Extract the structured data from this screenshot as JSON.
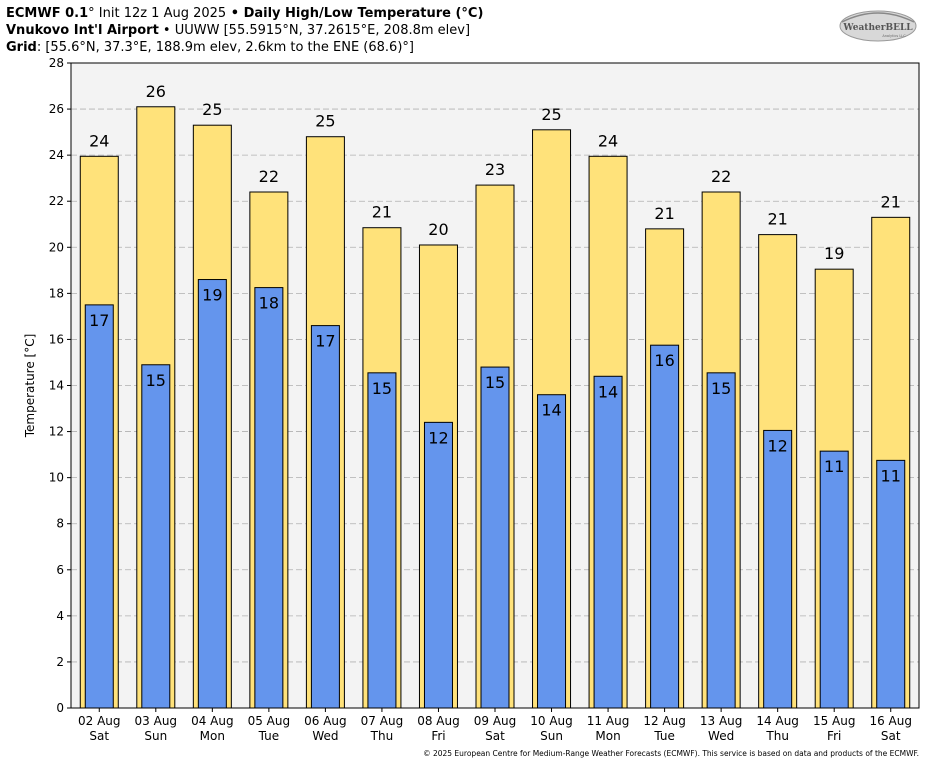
{
  "header": {
    "model": "ECMWF 0.1",
    "model_suffix": "° Init 12z 1 Aug 2025",
    "sep1": " • ",
    "product": "Daily High/Low Temperature (°C)",
    "station_name": "Vnukovo Int'l Airport",
    "sep2": " • ",
    "station_info": "UUWW [55.5915°N, 37.2615°E, 208.8m elev]",
    "grid_label": "Grid",
    "grid_info": ": [55.6°N, 37.3°E, 188.9m elev, 2.6km to the ENE (68.6)°]"
  },
  "logo": {
    "text": "WeatherBELL",
    "sub": "Analytics LLC"
  },
  "footer": {
    "copyright": "© 2025 European Centre for Medium-Range Weather Forecasts (ECMWF). This service is based on data and products of the ECMWF."
  },
  "colors": {
    "high": "#ffe27a",
    "low": "#6495ed",
    "plot_bg": "#f3f3f3",
    "grid": "#b0b0b0"
  },
  "chart_data": {
    "type": "bar",
    "ylabel": "Temperature [°C]",
    "ylim": [
      0,
      28
    ],
    "yticks": [
      0,
      2,
      4,
      6,
      8,
      10,
      12,
      14,
      16,
      18,
      20,
      22,
      24,
      26,
      28
    ],
    "grid": true,
    "categories": [
      "02 Aug",
      "03 Aug",
      "04 Aug",
      "05 Aug",
      "06 Aug",
      "07 Aug",
      "08 Aug",
      "09 Aug",
      "10 Aug",
      "11 Aug",
      "12 Aug",
      "13 Aug",
      "14 Aug",
      "15 Aug",
      "16 Aug"
    ],
    "weekdays": [
      "Sat",
      "Sun",
      "Mon",
      "Tue",
      "Wed",
      "Thu",
      "Fri",
      "Sat",
      "Sun",
      "Mon",
      "Tue",
      "Wed",
      "Thu",
      "Fri",
      "Sat"
    ],
    "series": [
      {
        "key": "high",
        "values": [
          23.95,
          26.1,
          25.3,
          22.4,
          24.8,
          20.85,
          20.1,
          22.7,
          25.1,
          23.95,
          20.8,
          22.4,
          20.55,
          19.05,
          21.3
        ],
        "labels": [
          "24",
          "26",
          "25",
          "22",
          "25",
          "21",
          "20",
          "23",
          "25",
          "24",
          "21",
          "22",
          "21",
          "19",
          "21"
        ]
      },
      {
        "key": "low",
        "values": [
          17.5,
          14.9,
          18.6,
          18.25,
          16.6,
          14.55,
          12.4,
          14.8,
          13.6,
          14.4,
          15.75,
          14.55,
          12.05,
          11.15,
          10.75
        ],
        "labels": [
          "17",
          "15",
          "19",
          "18",
          "17",
          "15",
          "12",
          "15",
          "14",
          "14",
          "16",
          "15",
          "12",
          "11",
          "11"
        ]
      }
    ]
  }
}
